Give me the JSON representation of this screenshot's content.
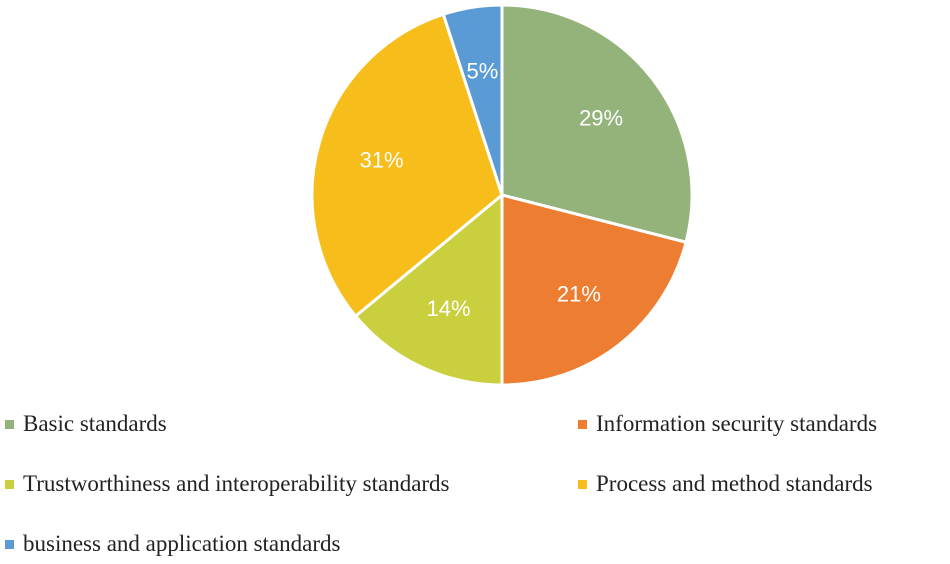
{
  "chart_data": {
    "type": "pie",
    "title": "",
    "categories": [
      "Basic standards",
      "Information security standards",
      "Trustworthiness and interoperability standards",
      "Process and method standards",
      "business and application standards"
    ],
    "values": [
      29,
      21,
      14,
      31,
      5
    ],
    "data_labels": [
      "29%",
      "21%",
      "14%",
      "31%",
      "5%"
    ],
    "colors": [
      "#93b37b",
      "#ed7d31",
      "#c9cf3d",
      "#f6bd1b",
      "#5b9bd5"
    ],
    "legend_position": "bottom",
    "start_angle": "12 o'clock",
    "direction": "clockwise"
  }
}
